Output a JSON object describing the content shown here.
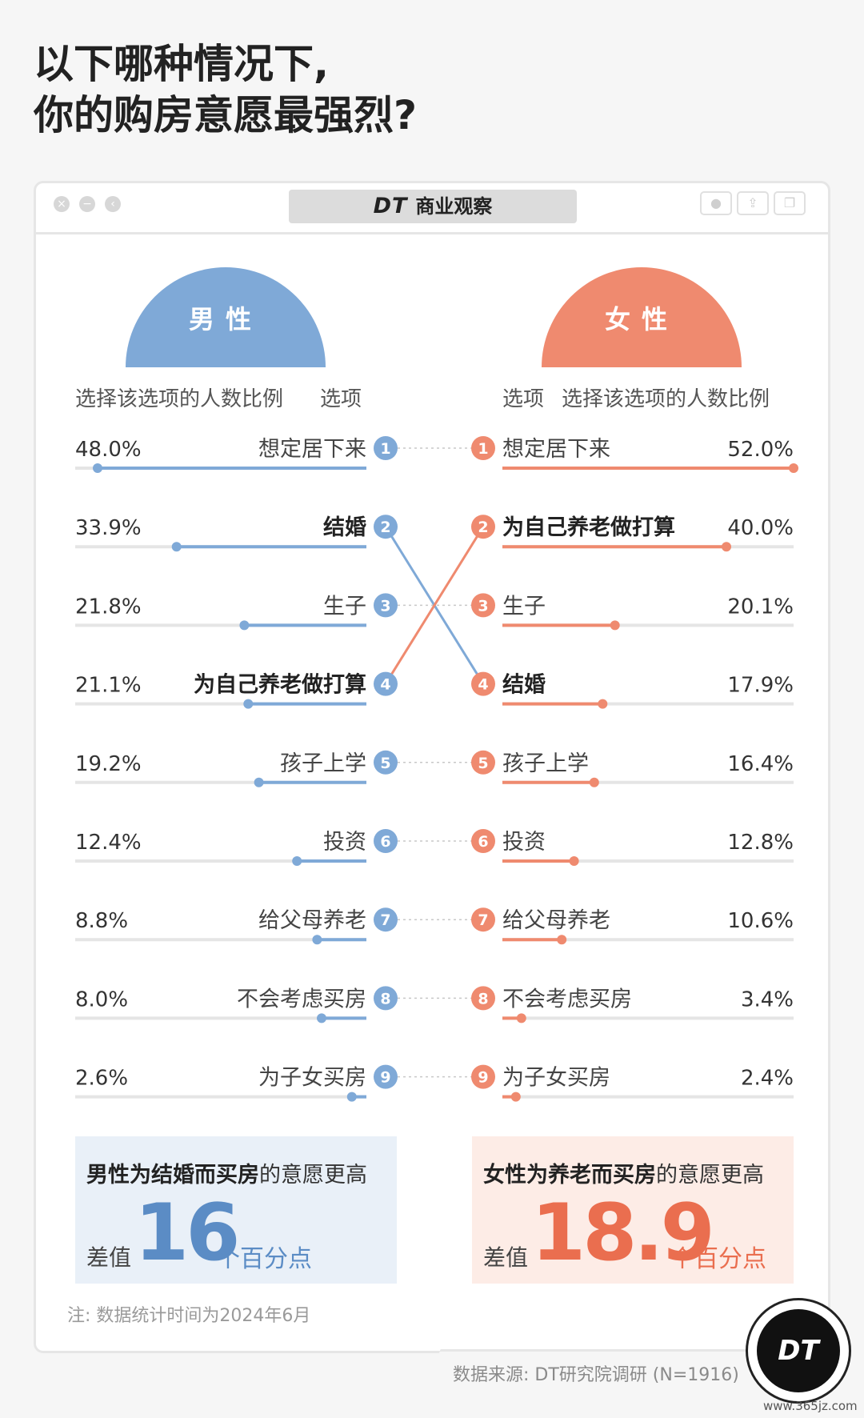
{
  "title": {
    "line1": "以下哪种情况下,",
    "line2": "你的购房意愿最强烈?"
  },
  "header": {
    "brand_mark": "DT",
    "brand_name": "商业观察"
  },
  "window_controls": {
    "close": "×",
    "minimize": "−",
    "expand": "‹"
  },
  "columns": {
    "male_label": "男性",
    "female_label": "女性",
    "male_header_pct": "选择该选项的人数比例",
    "male_header_opt": "选项",
    "female_header_opt": "选项",
    "female_header_pct": "选择该选项的人数比例"
  },
  "colors": {
    "male": "#7fa9d7",
    "male_dark": "#5b8cc5",
    "female": "#ef8a6f",
    "female_dark": "#ea6e4f",
    "track": "#e5e5e5"
  },
  "chart_data": {
    "type": "bar",
    "male": [
      {
        "rank": "1",
        "label": "想定居下来",
        "value": 48.0,
        "display": "48.0%",
        "bold": false
      },
      {
        "rank": "2",
        "label": "结婚",
        "value": 33.9,
        "display": "33.9%",
        "bold": true
      },
      {
        "rank": "3",
        "label": "生子",
        "value": 21.8,
        "display": "21.8%",
        "bold": false
      },
      {
        "rank": "4",
        "label": "为自己养老做打算",
        "value": 21.1,
        "display": "21.1%",
        "bold": true
      },
      {
        "rank": "5",
        "label": "孩子上学",
        "value": 19.2,
        "display": "19.2%",
        "bold": false
      },
      {
        "rank": "6",
        "label": "投资",
        "value": 12.4,
        "display": "12.4%",
        "bold": false
      },
      {
        "rank": "7",
        "label": "给父母养老",
        "value": 8.8,
        "display": "8.8%",
        "bold": false
      },
      {
        "rank": "8",
        "label": "不会考虑买房",
        "value": 8.0,
        "display": "8.0%",
        "bold": false
      },
      {
        "rank": "9",
        "label": "为子女买房",
        "value": 2.6,
        "display": "2.6%",
        "bold": false
      }
    ],
    "female": [
      {
        "rank": "1",
        "label": "想定居下来",
        "value": 52.0,
        "display": "52.0%",
        "bold": false
      },
      {
        "rank": "2",
        "label": "为自己养老做打算",
        "value": 40.0,
        "display": "40.0%",
        "bold": true
      },
      {
        "rank": "3",
        "label": "生子",
        "value": 20.1,
        "display": "20.1%",
        "bold": false
      },
      {
        "rank": "4",
        "label": "结婚",
        "value": 17.9,
        "display": "17.9%",
        "bold": true
      },
      {
        "rank": "5",
        "label": "孩子上学",
        "value": 16.4,
        "display": "16.4%",
        "bold": false
      },
      {
        "rank": "6",
        "label": "投资",
        "value": 12.8,
        "display": "12.8%",
        "bold": false
      },
      {
        "rank": "7",
        "label": "给父母养老",
        "value": 10.6,
        "display": "10.6%",
        "bold": false
      },
      {
        "rank": "8",
        "label": "不会考虑买房",
        "value": 3.4,
        "display": "3.4%",
        "bold": false
      },
      {
        "rank": "9",
        "label": "为子女买房",
        "value": 2.4,
        "display": "2.4%",
        "bold": false
      }
    ],
    "links": [
      {
        "from_rank": "2",
        "to_rank": "4",
        "color": "male"
      },
      {
        "from_rank": "4",
        "to_rank": "2",
        "color": "female"
      }
    ],
    "max_value": 52.0
  },
  "summary": {
    "male": {
      "bold": "男性为结婚而买房",
      "rest": "的意愿更高",
      "diff_label": "差值",
      "diff_value": "16",
      "diff_unit": "个百分点"
    },
    "female": {
      "bold": "女性为养老而买房",
      "rest": "的意愿更高",
      "diff_label": "差值",
      "diff_value": "18.9",
      "diff_unit": "个百分点"
    }
  },
  "note": "注: 数据统计时间为2024年6月",
  "source": "数据来源: DT研究院调研 (N=1916)",
  "logo": "DT",
  "website": "www.365jz.com"
}
